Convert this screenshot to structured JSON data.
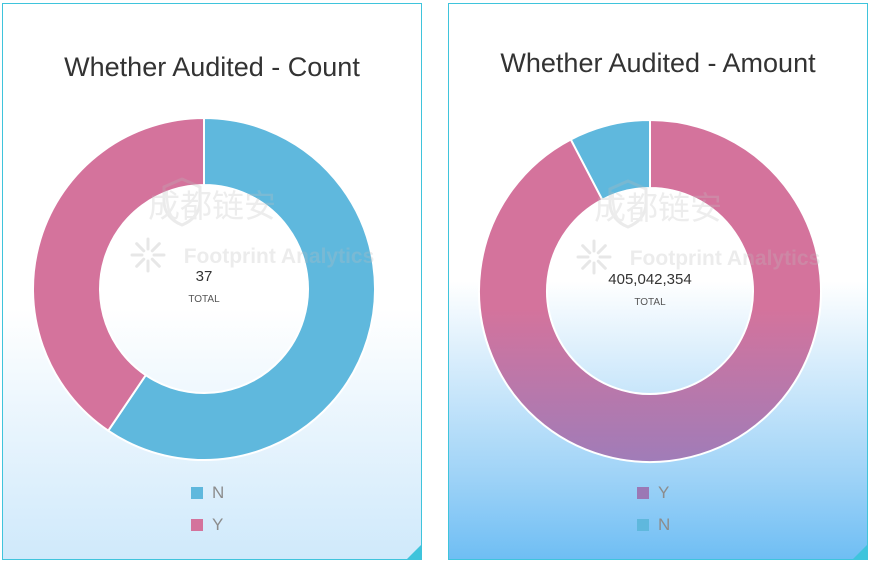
{
  "watermark": {
    "brand_cn": "成都链安",
    "brand_en": "Footprint Analytics"
  },
  "center_caption": "TOTAL",
  "chart_data": [
    {
      "type": "pie",
      "title": "Whether Audited - Count",
      "total_label": "37",
      "slices": [
        {
          "name": "N",
          "value": 22,
          "color": "#5fb8dd"
        },
        {
          "name": "Y",
          "value": 15,
          "color": "#d4739c"
        }
      ],
      "legend": [
        "N",
        "Y"
      ],
      "legend_position": "bottom"
    },
    {
      "type": "pie",
      "title": "Whether Audited - Amount",
      "total_label": "405,042,354",
      "slices": [
        {
          "name": "Y",
          "value": 374000000,
          "color": "#d4739c"
        },
        {
          "name": "N",
          "value": 31042354,
          "color": "#5fb8dd"
        }
      ],
      "legend": [
        "Y",
        "N"
      ],
      "legend_position": "bottom"
    }
  ],
  "colors": {
    "card_border": "#3fc4dc",
    "y_pink": "#d4739c",
    "n_blue": "#5fb8dd",
    "amount_y_gradient_end": "#a07cb8"
  }
}
